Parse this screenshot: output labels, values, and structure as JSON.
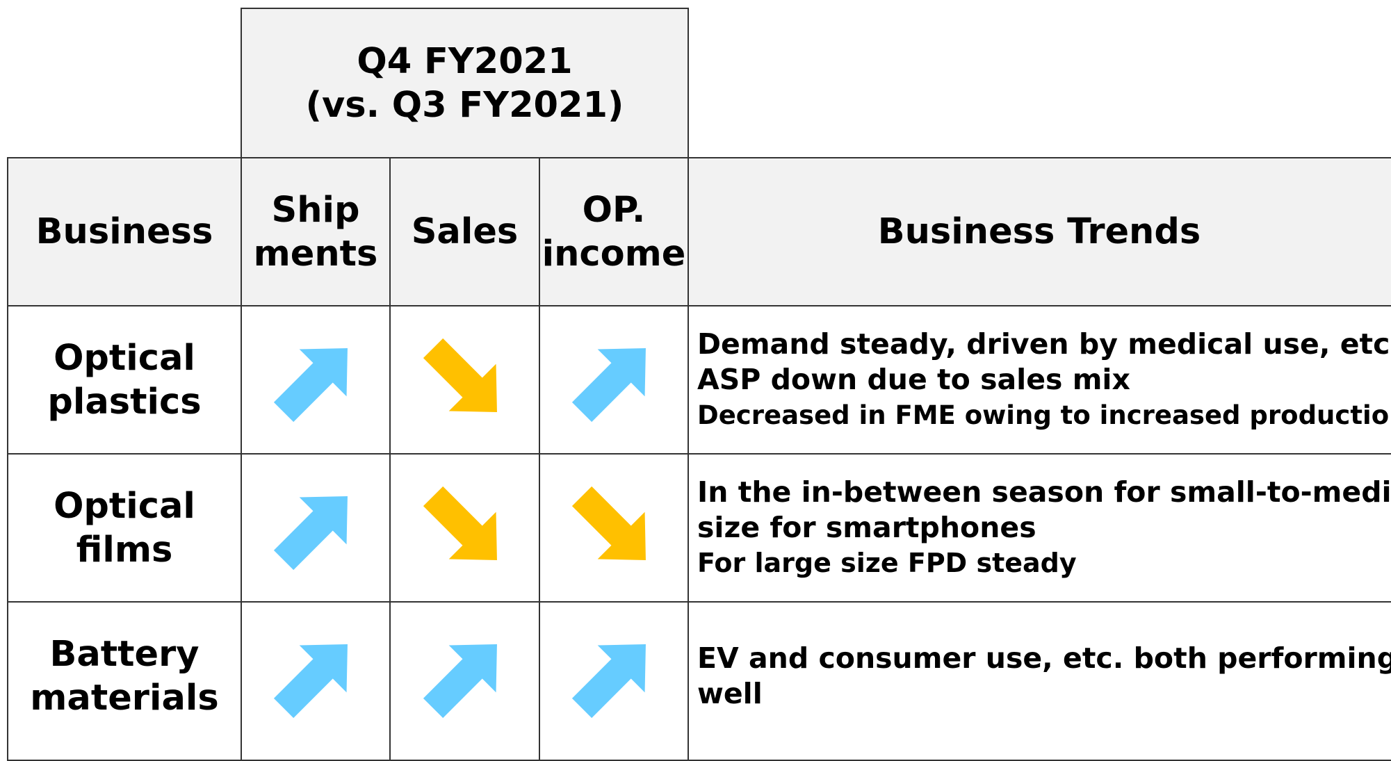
{
  "header": {
    "period": "Q4 FY2021",
    "comparison": "(vs. Q3 FY2021)"
  },
  "table": {
    "columns": [
      "Business",
      "Ship ments",
      "Sales",
      "OP. income",
      "Business Trends"
    ],
    "rows": [
      {
        "business": "Optical plastics",
        "trends": [
          "Demand steady, driven by medical use, etc.",
          "ASP down due to sales mix",
          "Decreased in FME owing to increased production"
        ]
      },
      {
        "business": "Optical films",
        "trends": [
          "In the in-between season for small-to-medium",
          "size for smartphones",
          "For large size FPD steady"
        ]
      },
      {
        "business": "Battery materials",
        "trends": [
          "EV and consumer use, etc. both performing",
          "well"
        ]
      }
    ]
  }
}
